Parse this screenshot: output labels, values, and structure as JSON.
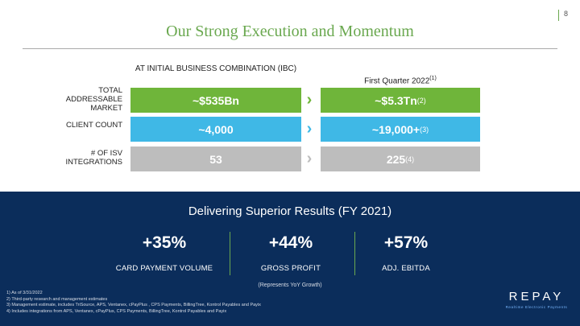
{
  "page_number": "8",
  "title": "Our Strong Execution and Momentum",
  "columns": {
    "left_header": "AT INITIAL BUSINESS COMBINATION (IBC)",
    "right_header": "First Quarter 2022",
    "right_header_note": "(1)"
  },
  "rows": [
    {
      "label": "TOTAL ADDRESSABLE MARKET",
      "left_value": "~$535Bn",
      "right_value": "~$5.3Tn",
      "right_note": "(2)",
      "color": "#6fb53a",
      "arrow_color": "#6fb53a"
    },
    {
      "label": "CLIENT COUNT",
      "left_value": "~4,000",
      "right_value": "~19,000+",
      "right_note": "(3)",
      "color": "#3fb8e6",
      "arrow_color": "#3fb8e6"
    },
    {
      "label": "# OF ISV INTEGRATIONS",
      "left_value": "53",
      "right_value": "225",
      "right_note": "(4)",
      "color": "#bdbdbd",
      "arrow_color": "#bdbdbd"
    }
  ],
  "results": {
    "title": "Delivering Superior Results (FY 2021)",
    "metrics": [
      {
        "value": "+35%",
        "label": "CARD PAYMENT VOLUME"
      },
      {
        "value": "+44%",
        "label": "GROSS PROFIT"
      },
      {
        "value": "+57%",
        "label": "ADJ. EBITDA"
      }
    ],
    "note": "(Represents YoY Growth)"
  },
  "footnotes": [
    "1)  As of 3/31/2022",
    "2)  Third-party research and management estimates",
    "3)  Management estimate, includes TriSource, APS, Ventanex, cPayPlus , CPS Payments, BillingTree, Kontrol Payables and Payix",
    "4)  Includes integrations from APS, Ventanex, cPayPlus, CPS Payments, BillingTree, Kontrol Payables and Payix"
  ],
  "logo": {
    "word": "REPAY",
    "tagline": "Realtime Electronic Payments"
  },
  "colors": {
    "accent_green": "#6aa84f",
    "panel_navy": "#0b2d5b"
  }
}
